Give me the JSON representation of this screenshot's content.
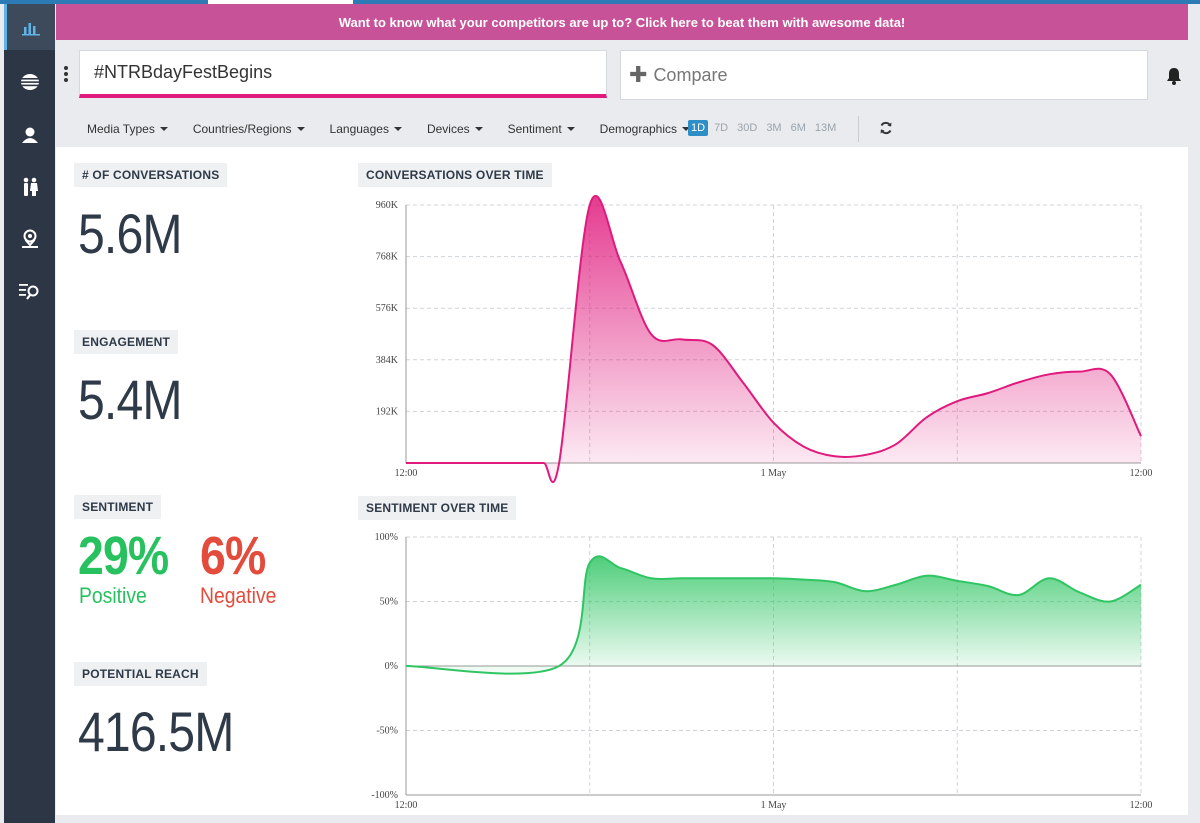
{
  "banner": {
    "text": "Want to know what your competitors are up to? Click here to beat them with awesome data!"
  },
  "search": {
    "value": "#NTRBdayFestBegins"
  },
  "compare": {
    "label": "Compare"
  },
  "filters": [
    "Media Types",
    "Countries/Regions",
    "Languages",
    "Devices",
    "Sentiment",
    "Demographics"
  ],
  "time_ranges": [
    {
      "label": "1D",
      "active": true
    },
    {
      "label": "7D",
      "active": false
    },
    {
      "label": "30D",
      "active": false
    },
    {
      "label": "3M",
      "active": false
    },
    {
      "label": "6M",
      "active": false
    },
    {
      "label": "13M",
      "active": false
    }
  ],
  "sidebar": {
    "items": [
      "bar-chart-icon",
      "globe-lines-icon",
      "user-icon",
      "people-icon",
      "location-user-icon",
      "list-search-icon"
    ]
  },
  "metrics": {
    "conversations": {
      "label": "# OF CONVERSATIONS",
      "value": "5.6M"
    },
    "engagement": {
      "label": "ENGAGEMENT",
      "value": "5.4M"
    },
    "sentiment": {
      "label": "SENTIMENT",
      "positive_value": "29%",
      "positive_label": "Positive",
      "negative_value": "6%",
      "negative_label": "Negative"
    },
    "reach": {
      "label": "POTENTIAL REACH",
      "value": "416.5M"
    }
  },
  "colors": {
    "positive": "#27c25f",
    "negative": "#e34c3c",
    "conversations_line": "#e0197d",
    "sentiment_line": "#2fc563",
    "banner": "#c85298"
  },
  "chart_data": [
    {
      "type": "area",
      "title": "CONVERSATIONS OVER TIME",
      "x_ticks": [
        "12:00",
        "1 May",
        "12:00"
      ],
      "y_ticks": [
        "192K",
        "384K",
        "576K",
        "768K",
        "960K"
      ],
      "ylim": [
        0,
        960000
      ],
      "grid": true,
      "x": [
        0,
        1.5,
        2.5,
        3,
        3.5,
        4,
        4.5,
        5,
        6,
        7,
        8,
        9,
        10,
        11,
        12,
        13,
        14,
        15,
        16,
        17,
        18,
        19,
        20,
        21,
        22,
        23,
        24
      ],
      "values": [
        0,
        0,
        0,
        0,
        0,
        0,
        0,
        0,
        960000,
        750000,
        480000,
        460000,
        440000,
        300000,
        150000,
        60000,
        25000,
        30000,
        70000,
        170000,
        230000,
        260000,
        300000,
        330000,
        340000,
        330000,
        100000
      ]
    },
    {
      "type": "area",
      "title": "SENTIMENT OVER TIME",
      "x_ticks": [
        "12:00",
        "1 May",
        "12:00"
      ],
      "y_ticks": [
        "-100%",
        "-50%",
        "0%",
        "50%",
        "100%"
      ],
      "ylim": [
        -100,
        100
      ],
      "grid": true,
      "x": [
        0,
        5,
        6,
        7,
        8,
        9,
        10,
        11,
        12,
        13,
        14,
        15,
        16,
        17,
        18,
        19,
        20,
        21,
        22,
        23,
        24
      ],
      "values": [
        0,
        0,
        80,
        76,
        68,
        68,
        68,
        68,
        68,
        67,
        65,
        58,
        63,
        70,
        66,
        62,
        55,
        68,
        57,
        50,
        63
      ]
    }
  ]
}
